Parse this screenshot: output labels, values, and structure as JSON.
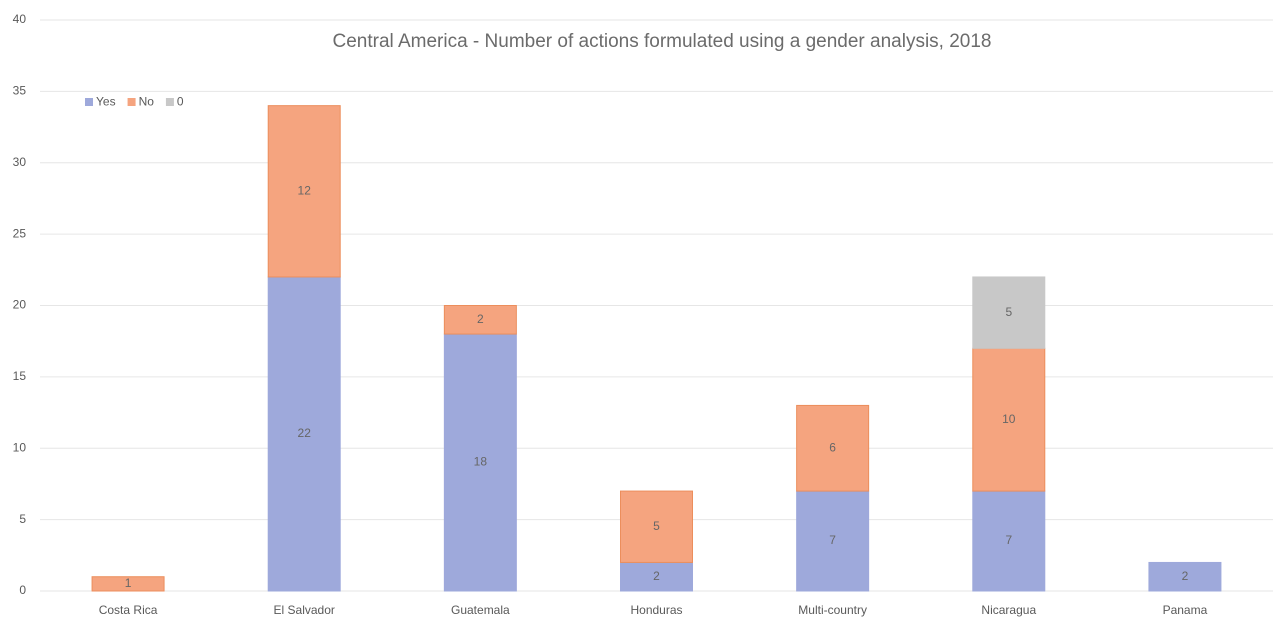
{
  "chart_data": {
    "type": "stacked_bar",
    "title": "Central America - Number of actions formulated using a gender analysis, 2018",
    "categories": [
      "Costa Rica",
      "El Salvador",
      "Guatemala",
      "Honduras",
      "Multi-country",
      "Nicaragua",
      "Panama"
    ],
    "series": [
      {
        "name": "Yes",
        "color": "#9ea9db",
        "values": [
          null,
          22,
          18,
          2,
          7,
          7,
          2
        ]
      },
      {
        "name": "No",
        "color": "#f5a47f",
        "values": [
          1,
          12,
          2,
          5,
          6,
          10,
          null
        ]
      },
      {
        "name": "0",
        "color": "#c8c8c8",
        "values": [
          null,
          null,
          null,
          null,
          null,
          5,
          null
        ]
      }
    ],
    "ylim": [
      0,
      40
    ],
    "yticks": [
      0,
      5,
      10,
      15,
      20,
      25,
      30,
      35,
      40
    ],
    "grid": true,
    "legend": "top-left"
  }
}
